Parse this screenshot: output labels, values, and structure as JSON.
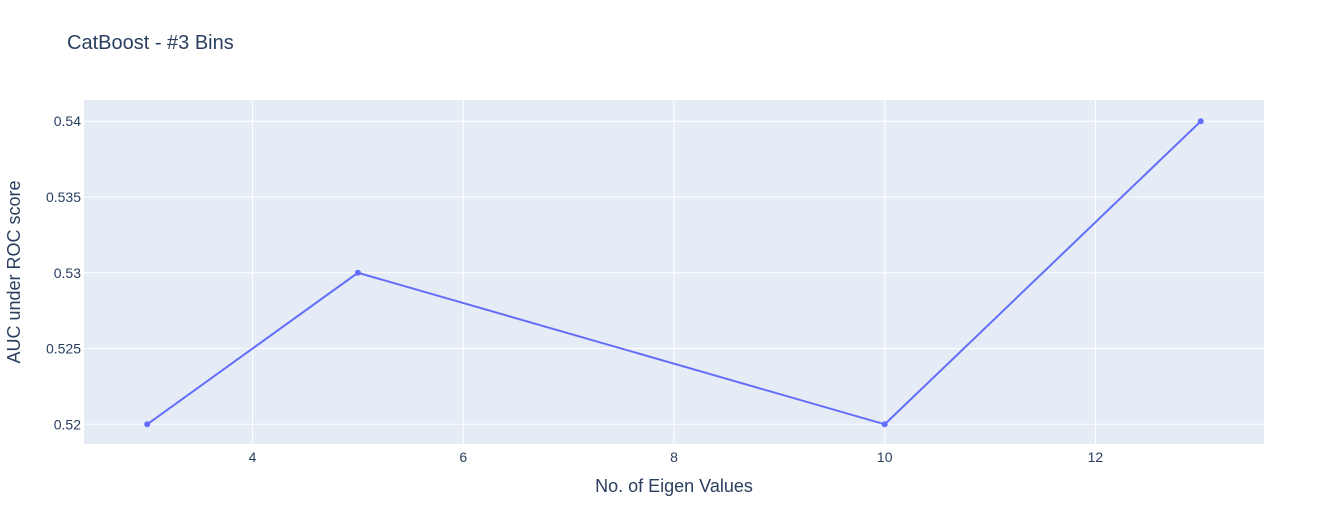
{
  "chart_data": {
    "type": "line",
    "title": "CatBoost - #3 Bins",
    "xlabel": "No. of Eigen Values",
    "ylabel": "AUC under ROC score",
    "xlim": [
      2.4,
      13.6
    ],
    "ylim": [
      0.5187,
      0.5414
    ],
    "xticks": [
      4,
      6,
      8,
      10,
      12
    ],
    "yticks": [
      0.52,
      0.525,
      0.53,
      0.535,
      0.54
    ],
    "ytick_labels": [
      "0.52",
      "0.525",
      "0.53",
      "0.535",
      "0.54"
    ],
    "grid": true,
    "legend": false,
    "series": [
      {
        "x": [
          3,
          5,
          10,
          13
        ],
        "y": [
          0.52,
          0.53,
          0.52,
          0.54
        ],
        "color": "#636efa",
        "mode": "lines+markers"
      }
    ],
    "plot_background": "#e5ecf6"
  }
}
